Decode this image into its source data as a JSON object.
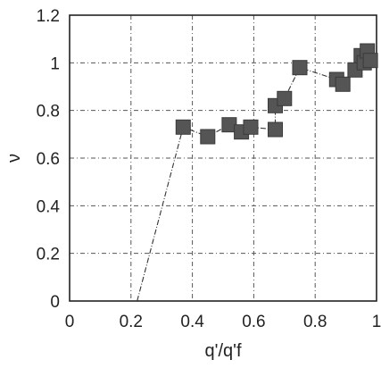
{
  "chart_data": {
    "type": "scatter",
    "title": "",
    "xlabel": "q'/q'f",
    "ylabel": "ν",
    "xlim": [
      0,
      1
    ],
    "ylim": [
      0,
      1.2
    ],
    "grid": true,
    "x_ticks": [
      0,
      0.2,
      0.4,
      0.6,
      0.8,
      1
    ],
    "x_tick_labels": [
      "0",
      "0.2",
      "0.4",
      "0.6",
      "0.8",
      "1"
    ],
    "y_ticks": [
      0,
      0.2,
      0.4,
      0.6,
      0.8,
      1,
      1.2
    ],
    "y_tick_labels": [
      "0",
      "0.2",
      "0.4",
      "0.6",
      "0.8",
      "1",
      "1.2"
    ],
    "series": [
      {
        "marker": "square",
        "line": "dashed",
        "color": "#555555",
        "x": [
          0.22,
          0.37,
          0.45,
          0.52,
          0.56,
          0.59,
          0.67,
          0.67,
          0.7,
          0.75,
          0.87,
          0.89,
          0.93,
          0.95,
          0.96,
          0.97,
          0.98
        ],
        "y": [
          0.0,
          0.73,
          0.69,
          0.74,
          0.71,
          0.73,
          0.72,
          0.82,
          0.85,
          0.98,
          0.93,
          0.91,
          0.97,
          1.03,
          1.0,
          1.05,
          1.01
        ],
        "marked": [
          false,
          true,
          true,
          true,
          true,
          true,
          true,
          true,
          true,
          true,
          true,
          true,
          true,
          true,
          true,
          true,
          true
        ]
      }
    ]
  }
}
